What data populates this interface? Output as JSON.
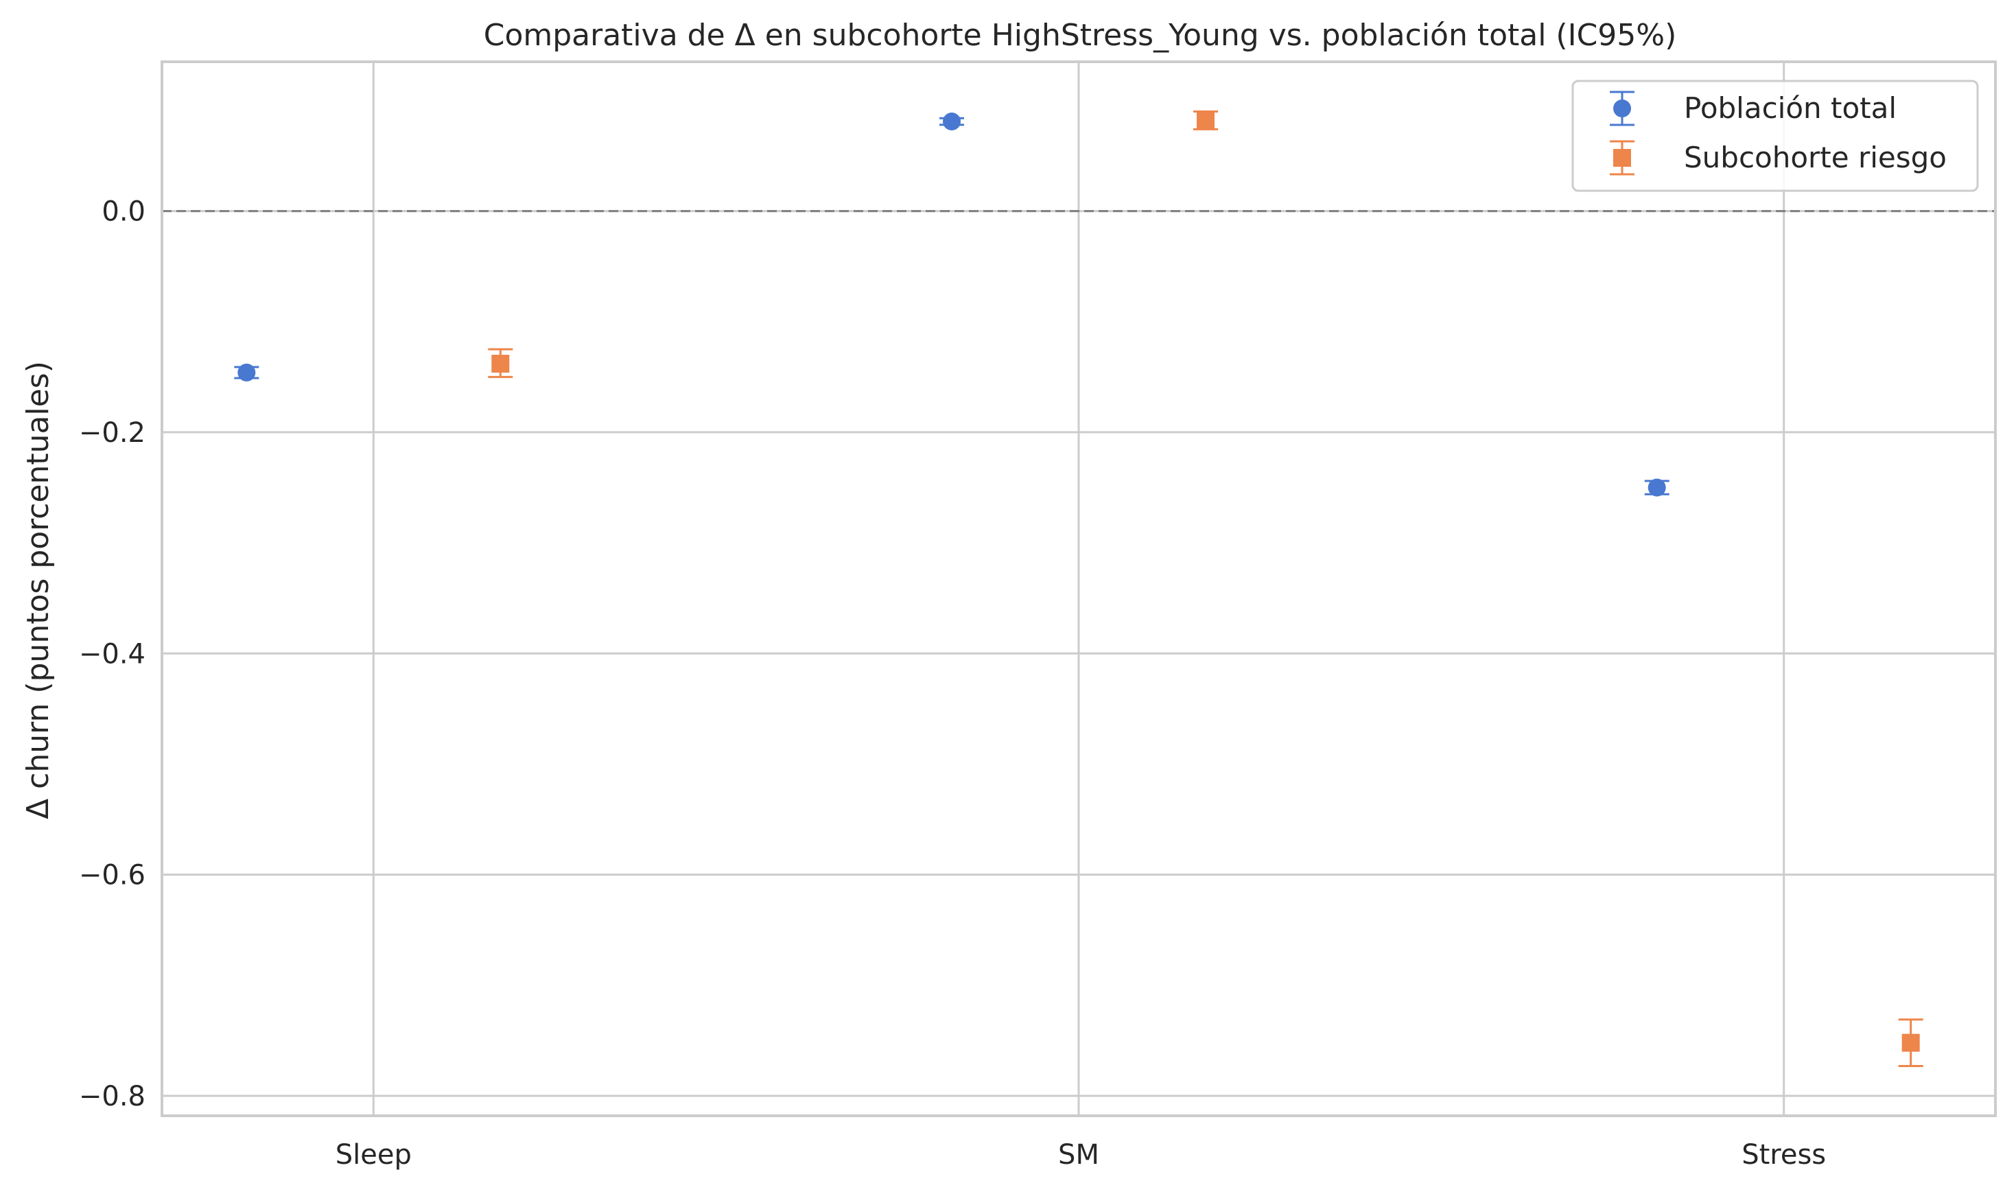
{
  "chart_data": {
    "type": "scatter",
    "title": "Comparativa de Δ en subcohorte HighStress_Young vs. población total (IC95%)",
    "xlabel": "",
    "ylabel": "Δ churn (puntos porcentuales)",
    "categories": [
      "Sleep",
      "SM",
      "Stress"
    ],
    "ylim": [
      -0.818,
      0.135
    ],
    "yticks": [
      0.0,
      -0.2,
      -0.4,
      -0.6,
      -0.8
    ],
    "ytick_labels": [
      "0.0",
      "−0.2",
      "−0.4",
      "−0.6",
      "−0.8"
    ],
    "grid": true,
    "reference_line": 0.0,
    "legend_position": "top-right",
    "series": [
      {
        "name": "Población total",
        "marker": "circle",
        "color": "#4878d0",
        "offset": -0.18,
        "values": [
          -0.146,
          0.081,
          -0.25
        ],
        "ci_low": [
          -0.151,
          0.078,
          -0.256
        ],
        "ci_high": [
          -0.141,
          0.084,
          -0.244
        ]
      },
      {
        "name": "Subcohorte riesgo",
        "marker": "square",
        "color": "#ee854a",
        "offset": 0.18,
        "values": [
          -0.138,
          0.082,
          -0.752
        ],
        "ci_low": [
          -0.15,
          0.074,
          -0.773
        ],
        "ci_high": [
          -0.125,
          0.09,
          -0.731
        ]
      }
    ]
  }
}
